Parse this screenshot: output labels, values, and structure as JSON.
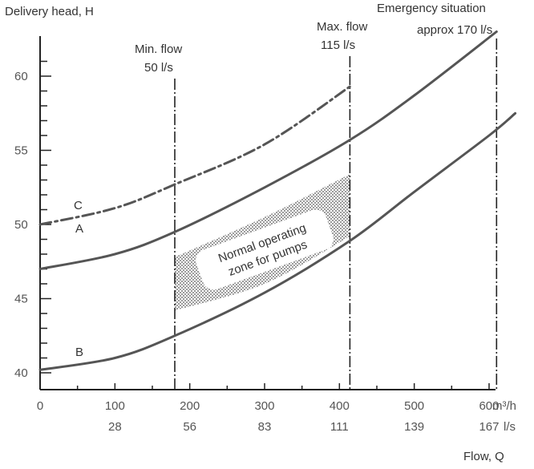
{
  "chart_data": {
    "type": "line",
    "ylabel": "Delivery head, H",
    "xlabel": "Flow, Q",
    "x_unit_primary": "m³/h",
    "x_unit_secondary": "l/s",
    "xlim": [
      0,
      620
    ],
    "ylim": [
      39,
      62.5
    ],
    "y_ticks": [
      40,
      45,
      50,
      55,
      60
    ],
    "x_ticks": [
      {
        "value": 0,
        "primary": "0",
        "secondary": ""
      },
      {
        "value": 100,
        "primary": "100",
        "secondary": "28"
      },
      {
        "value": 200,
        "primary": "200",
        "secondary": "56"
      },
      {
        "value": 300,
        "primary": "300",
        "secondary": "83"
      },
      {
        "value": 400,
        "primary": "400",
        "secondary": "111"
      },
      {
        "value": 500,
        "primary": "500",
        "secondary": "139"
      },
      {
        "value": 600,
        "primary": "600",
        "secondary": "167"
      }
    ],
    "series": [
      {
        "name": "C",
        "style": "dash-dot",
        "x": [
          0,
          100,
          180,
          300,
          414
        ],
        "y": [
          50,
          51.1,
          52.7,
          55.4,
          59.3
        ]
      },
      {
        "name": "A",
        "style": "solid",
        "x": [
          0,
          100,
          180,
          300,
          414,
          500,
          610
        ],
        "y": [
          47,
          48,
          49.5,
          52.5,
          55.7,
          58.7,
          63
        ]
      },
      {
        "name": "B",
        "style": "solid",
        "x": [
          0,
          100,
          180,
          300,
          414,
          500,
          600,
          635
        ],
        "y": [
          40.2,
          41,
          42.5,
          45.4,
          48.9,
          52.2,
          56,
          57.5
        ]
      }
    ],
    "vertical_lines": [
      {
        "x": 180,
        "label_top": "Min. flow",
        "label_bottom": "50 l/s"
      },
      {
        "x": 414,
        "label_top": "Max. flow",
        "label_bottom": "115 l/s"
      },
      {
        "x": 610,
        "label_top": "Emergency situation",
        "label_bottom": "approx 170 l/s"
      }
    ],
    "zone": {
      "label_line1": "Normal operating",
      "label_line2": "zone for pumps",
      "top": {
        "x": [
          180,
          300,
          414
        ],
        "y": [
          47.8,
          50.5,
          53.4
        ]
      },
      "bottom": {
        "x": [
          180,
          300,
          414
        ],
        "y": [
          44.2,
          46,
          49.2
        ]
      }
    },
    "colors": {
      "curve": "#555555",
      "axis": "#222222",
      "zone": "#bdbdbd"
    }
  }
}
